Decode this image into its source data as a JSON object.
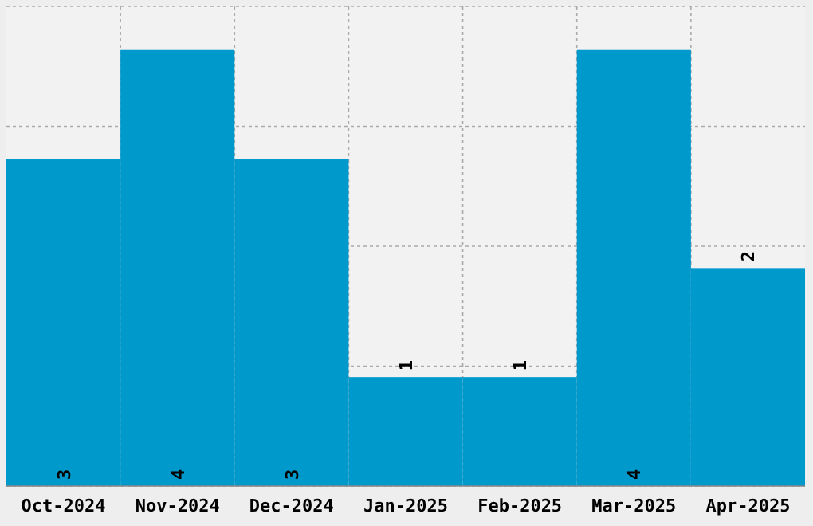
{
  "chart_data": {
    "type": "bar",
    "categories": [
      "Oct-2024",
      "Nov-2024",
      "Dec-2024",
      "Jan-2025",
      "Feb-2025",
      "Mar-2025",
      "Apr-2025"
    ],
    "values": [
      3,
      4,
      3,
      1,
      1,
      4,
      2
    ],
    "color": "#0099cc",
    "ylim": [
      0,
      4.4
    ],
    "yticks": [
      {
        "value": 0,
        "label": null
      },
      {
        "value": 1.1,
        "label": null
      },
      {
        "value": 2.2,
        "label": null
      },
      {
        "value": 3.3,
        "label": null
      },
      {
        "value": 4.4,
        "label": null
      }
    ],
    "tick_labels": "x",
    "grid": true,
    "data_labels": true
  }
}
